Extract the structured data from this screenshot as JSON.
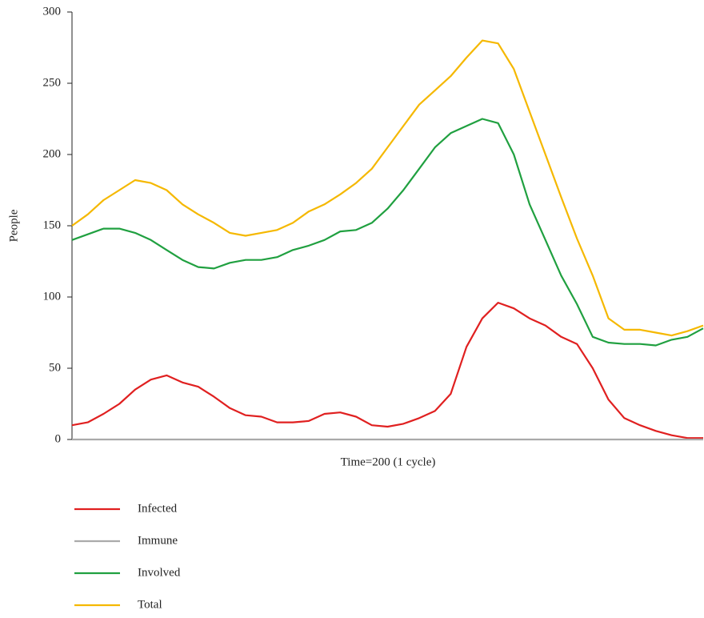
{
  "chart_data": {
    "type": "line",
    "xlabel": "Time=200 (1 cycle)",
    "ylabel": "People",
    "ylim": [
      0,
      300
    ],
    "yticks": [
      0,
      50,
      100,
      150,
      200,
      250,
      300
    ],
    "series": [
      {
        "name": "Infected",
        "color": "#e02020",
        "values": [
          10,
          12,
          18,
          25,
          35,
          42,
          45,
          40,
          37,
          30,
          22,
          17,
          16,
          12,
          12,
          13,
          18,
          19,
          16,
          10,
          9,
          11,
          15,
          20,
          32,
          65,
          85,
          96,
          92,
          85,
          80,
          72,
          67,
          50,
          28,
          15,
          10,
          6,
          3,
          1,
          1
        ]
      },
      {
        "name": "Immune",
        "color": "#aaaaaa",
        "values": [
          0,
          0,
          0,
          0,
          0,
          0,
          0,
          0,
          0,
          0,
          0,
          0,
          0,
          0,
          0,
          0,
          0,
          0,
          0,
          0,
          0,
          0,
          0,
          0,
          0,
          0,
          0,
          0,
          0,
          0,
          0,
          0,
          0,
          0,
          0,
          0,
          0,
          0,
          0,
          0,
          0
        ]
      },
      {
        "name": "Involved",
        "color": "#20a040",
        "values": [
          140,
          144,
          148,
          148,
          145,
          140,
          133,
          126,
          121,
          120,
          124,
          126,
          126,
          128,
          133,
          136,
          140,
          146,
          147,
          152,
          162,
          175,
          190,
          205,
          215,
          220,
          225,
          222,
          200,
          165,
          140,
          115,
          95,
          72,
          68,
          67,
          67,
          66,
          70,
          72,
          78
        ]
      },
      {
        "name": "Total",
        "color": "#f5b800",
        "values": [
          150,
          158,
          168,
          175,
          182,
          180,
          175,
          165,
          158,
          152,
          145,
          143,
          145,
          147,
          152,
          160,
          165,
          172,
          180,
          190,
          205,
          220,
          235,
          245,
          255,
          268,
          280,
          278,
          260,
          230,
          200,
          170,
          141,
          115,
          85,
          77,
          77,
          75,
          73,
          76,
          80
        ]
      }
    ]
  }
}
